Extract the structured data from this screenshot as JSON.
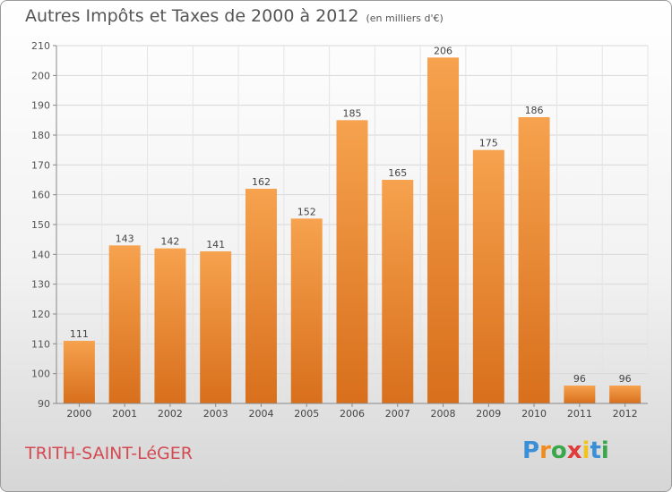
{
  "chart_data": {
    "type": "bar",
    "title": "Autres Impôts et Taxes de 2000 à 2012",
    "subtitle": "(en milliers d'€)",
    "categories": [
      "2000",
      "2001",
      "2002",
      "2003",
      "2004",
      "2005",
      "2006",
      "2007",
      "2008",
      "2009",
      "2010",
      "2011",
      "2012"
    ],
    "values": [
      111,
      143,
      142,
      141,
      162,
      152,
      185,
      165,
      206,
      175,
      186,
      96,
      96
    ],
    "ylim": [
      90,
      210
    ],
    "yticks": [
      90,
      100,
      110,
      120,
      130,
      140,
      150,
      160,
      170,
      180,
      190,
      200,
      210
    ],
    "grid": true,
    "legend": "none",
    "bar_color": "#f0913b",
    "bar_color_dark": "#d9731f"
  },
  "footer": {
    "place": "TRITH-SAINT-LéGER",
    "logo_letters": [
      "P",
      "r",
      "o",
      "x",
      "i",
      "t",
      "i"
    ],
    "logo_colors": [
      "#3a8fd6",
      "#f28b1e",
      "#3aa84a",
      "#e03a3a",
      "#f2c21e",
      "#3a8fd6",
      "#3aa84a"
    ]
  }
}
